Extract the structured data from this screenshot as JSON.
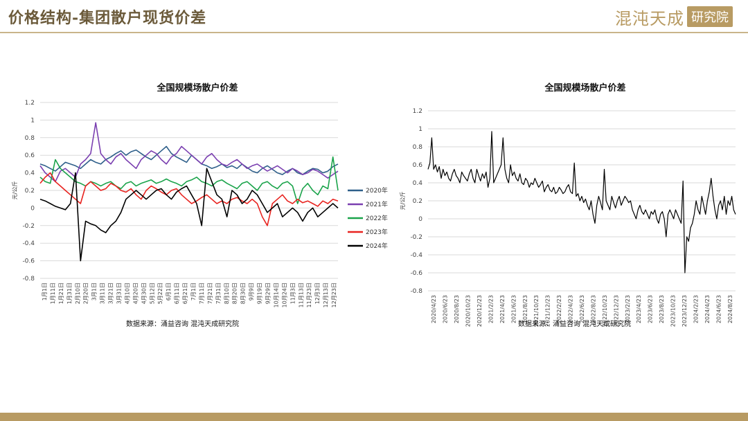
{
  "header": {
    "title": "价格结构-集团散户现货价差",
    "logo_main": "混沌天成",
    "logo_box": "研究院"
  },
  "colors": {
    "accent": "#b89b63",
    "series_2020": "#2e5f8a",
    "series_2021": "#7a3fb0",
    "series_2022": "#1aa34a",
    "series_2023": "#e8231f",
    "series_2024": "#000000",
    "grid": "#d9d9d9"
  },
  "chart_data": [
    {
      "type": "line",
      "title": "全国规模场散户价差",
      "ylabel": "元/公斤",
      "ylim": [
        -0.8,
        1.2
      ],
      "yticks": [
        "-0.8",
        "-0.6",
        "-0.4",
        "-0.2",
        "0",
        "0.2",
        "0.4",
        "0.6",
        "0.8",
        "1",
        "1.2"
      ],
      "xticks": [
        "1月1日",
        "1月11日",
        "1月21日",
        "1月31日",
        "2月10日",
        "2月20日",
        "3月1日",
        "3月11日",
        "3月21日",
        "3月31日",
        "4月10日",
        "4月20日",
        "4月30日",
        "5月12日",
        "5月22日",
        "6月1日",
        "6月11日",
        "6月21日",
        "7月1日",
        "7月11日",
        "7月21日",
        "7月31日",
        "8月10日",
        "8月20日",
        "8月30日",
        "9月9日",
        "9月19日",
        "9月29日",
        "10月14日",
        "10月24日",
        "11月3日",
        "11月13日",
        "11月23日",
        "12月3日",
        "12月13日",
        "12月23日"
      ],
      "legend_position": "right",
      "grid": true,
      "source": "数据来源：涌益咨询 混沌天成研究院",
      "series": [
        {
          "name": "2020年",
          "values": [
            0.5,
            0.48,
            0.45,
            0.42,
            0.47,
            0.52,
            0.5,
            0.48,
            0.45,
            0.5,
            0.55,
            0.52,
            0.5,
            0.55,
            0.58,
            0.62,
            0.65,
            0.6,
            0.64,
            0.66,
            0.62,
            0.58,
            0.55,
            0.6,
            0.65,
            0.7,
            0.62,
            0.58,
            0.55,
            0.52,
            0.6,
            0.55,
            0.5,
            0.48,
            0.45,
            0.47,
            0.5,
            0.46,
            0.48,
            0.45,
            0.5,
            0.46,
            0.42,
            0.4,
            0.45,
            0.48,
            0.44,
            0.4,
            0.38,
            0.42,
            0.45,
            0.4,
            0.38,
            0.42,
            0.45,
            0.44,
            0.4,
            0.42,
            0.47,
            0.5
          ]
        },
        {
          "name": "2021年",
          "values": [
            0.48,
            0.4,
            0.35,
            0.3,
            0.42,
            0.45,
            0.4,
            0.35,
            0.5,
            0.55,
            0.62,
            0.97,
            0.62,
            0.55,
            0.5,
            0.58,
            0.62,
            0.55,
            0.5,
            0.45,
            0.55,
            0.6,
            0.65,
            0.62,
            0.55,
            0.5,
            0.58,
            0.62,
            0.7,
            0.65,
            0.6,
            0.55,
            0.5,
            0.58,
            0.62,
            0.55,
            0.5,
            0.48,
            0.52,
            0.55,
            0.5,
            0.45,
            0.48,
            0.5,
            0.46,
            0.42,
            0.45,
            0.48,
            0.44,
            0.4,
            0.45,
            0.42,
            0.38,
            0.4,
            0.44,
            0.42,
            0.38,
            0.34,
            0.38,
            0.42
          ]
        },
        {
          "name": "2022年",
          "values": [
            0.35,
            0.3,
            0.28,
            0.55,
            0.45,
            0.4,
            0.35,
            0.3,
            0.28,
            0.25,
            0.3,
            0.28,
            0.25,
            0.28,
            0.3,
            0.25,
            0.22,
            0.28,
            0.3,
            0.25,
            0.28,
            0.3,
            0.32,
            0.28,
            0.3,
            0.33,
            0.3,
            0.28,
            0.25,
            0.3,
            0.32,
            0.35,
            0.3,
            0.28,
            0.25,
            0.3,
            0.32,
            0.28,
            0.25,
            0.22,
            0.28,
            0.3,
            0.25,
            0.2,
            0.28,
            0.3,
            0.25,
            0.22,
            0.28,
            0.3,
            0.25,
            0.05,
            0.22,
            0.28,
            0.2,
            0.15,
            0.25,
            0.22,
            0.58,
            0.2
          ]
        },
        {
          "name": "2023年",
          "values": [
            0.28,
            0.35,
            0.4,
            0.3,
            0.25,
            0.2,
            0.15,
            0.1,
            0.05,
            0.25,
            0.3,
            0.25,
            0.2,
            0.22,
            0.28,
            0.25,
            0.2,
            0.18,
            0.22,
            0.15,
            0.1,
            0.2,
            0.25,
            0.22,
            0.18,
            0.15,
            0.2,
            0.22,
            0.15,
            0.1,
            0.05,
            0.08,
            0.12,
            0.15,
            0.1,
            0.05,
            0.08,
            0.05,
            0.1,
            0.12,
            0.08,
            0.05,
            0.1,
            0.05,
            -0.1,
            -0.2,
            0.05,
            0.1,
            0.15,
            0.08,
            0.05,
            0.1,
            0.06,
            0.08,
            0.05,
            0.02,
            0.08,
            0.05,
            0.1,
            0.08
          ]
        },
        {
          "name": "2024年",
          "values": [
            0.1,
            0.08,
            0.05,
            0.02,
            0.0,
            -0.02,
            0.05,
            0.4,
            -0.6,
            -0.15,
            -0.18,
            -0.2,
            -0.25,
            -0.28,
            -0.2,
            -0.15,
            -0.05,
            0.1,
            0.15,
            0.2,
            0.15,
            0.1,
            0.15,
            0.2,
            0.22,
            0.15,
            0.1,
            0.18,
            0.22,
            0.25,
            0.15,
            0.05,
            -0.2,
            0.45,
            0.3,
            0.15,
            0.1,
            -0.1,
            0.2,
            0.15,
            0.05,
            0.1,
            0.2,
            0.15,
            0.05,
            -0.05,
            0.0,
            0.05,
            -0.1,
            -0.05,
            0.0,
            -0.05,
            -0.15,
            -0.05,
            0.0,
            -0.1,
            -0.05,
            0.0,
            0.05,
            0.0
          ]
        }
      ]
    },
    {
      "type": "line",
      "title": "全国规模场散户价差",
      "ylabel": "元/公斤",
      "ylim": [
        -0.8,
        1.2
      ],
      "yticks": [
        "-0.8",
        "-0.6",
        "-0.4",
        "-0.2",
        "0",
        "0.2",
        "0.4",
        "0.6",
        "0.8",
        "1",
        "1.2"
      ],
      "xticks": [
        "2020/4/23",
        "2020/6/23",
        "2020/8/23",
        "2020/10/23",
        "2020/12/23",
        "2021/2/23",
        "2021/4/23",
        "2021/6/23",
        "2021/8/23",
        "2021/10/23",
        "2021/12/23",
        "2022/2/23",
        "2022/4/23",
        "2022/6/23",
        "2022/8/23",
        "2022/10/23",
        "2022/12/23",
        "2023/2/23",
        "2023/4/23",
        "2023/6/23",
        "2023/8/23",
        "2023/10/23",
        "2023/12/23",
        "2024/2/23",
        "2024/4/23",
        "2024/6/23",
        "2024/8/23"
      ],
      "grid": true,
      "source": "数据来源：涌益咨询 混沌天成研究院",
      "series": [
        {
          "name": "",
          "values": [
            0.55,
            0.62,
            0.9,
            0.55,
            0.6,
            0.52,
            0.58,
            0.45,
            0.55,
            0.48,
            0.52,
            0.45,
            0.42,
            0.5,
            0.55,
            0.48,
            0.45,
            0.4,
            0.52,
            0.48,
            0.45,
            0.42,
            0.5,
            0.55,
            0.45,
            0.4,
            0.55,
            0.48,
            0.42,
            0.5,
            0.45,
            0.52,
            0.35,
            0.45,
            0.97,
            0.4,
            0.45,
            0.5,
            0.55,
            0.6,
            0.9,
            0.55,
            0.45,
            0.4,
            0.6,
            0.48,
            0.52,
            0.45,
            0.42,
            0.5,
            0.4,
            0.38,
            0.45,
            0.42,
            0.35,
            0.4,
            0.38,
            0.45,
            0.4,
            0.35,
            0.38,
            0.42,
            0.3,
            0.35,
            0.38,
            0.32,
            0.3,
            0.35,
            0.28,
            0.3,
            0.35,
            0.32,
            0.28,
            0.3,
            0.35,
            0.38,
            0.3,
            0.28,
            0.62,
            0.25,
            0.28,
            0.2,
            0.25,
            0.18,
            0.22,
            0.15,
            0.1,
            0.2,
            0.05,
            -0.05,
            0.15,
            0.25,
            0.18,
            0.1,
            0.55,
            0.2,
            0.15,
            0.1,
            0.25,
            0.18,
            0.12,
            0.2,
            0.25,
            0.15,
            0.2,
            0.25,
            0.22,
            0.18,
            0.2,
            0.1,
            0.05,
            0.0,
            0.1,
            0.15,
            0.08,
            0.05,
            0.1,
            0.05,
            0.0,
            0.08,
            0.05,
            0.1,
            0.0,
            -0.05,
            0.05,
            0.08,
            0.0,
            -0.2,
            0.05,
            0.1,
            0.05,
            0.0,
            0.1,
            0.05,
            0.0,
            -0.05,
            0.42,
            -0.6,
            -0.2,
            -0.25,
            -0.1,
            -0.05,
            0.05,
            0.2,
            0.1,
            0.05,
            0.25,
            0.15,
            0.05,
            0.2,
            0.3,
            0.45,
            0.25,
            0.1,
            0.0,
            0.15,
            0.2,
            0.1,
            0.25,
            0.05,
            0.2,
            0.15,
            0.25,
            0.1,
            0.05
          ]
        }
      ]
    }
  ]
}
